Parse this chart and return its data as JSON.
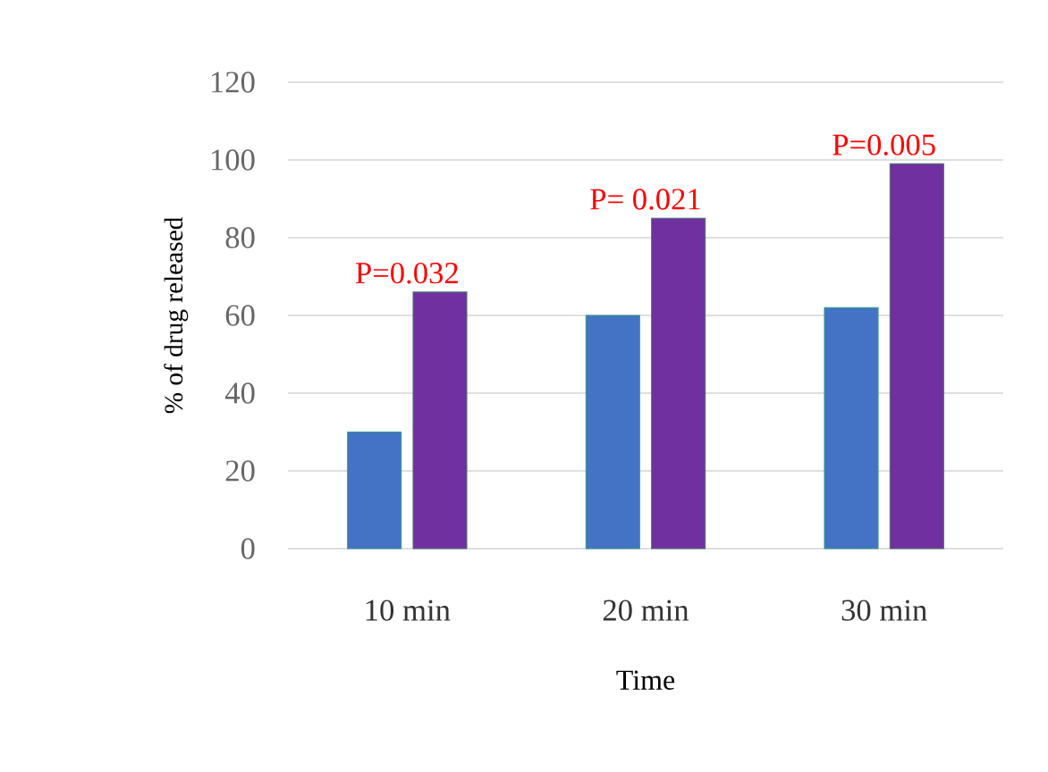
{
  "chart_data": {
    "type": "bar",
    "xlabel": "Time",
    "ylabel": "% of drug released",
    "categories": [
      "10 min",
      "20 min",
      "30 min"
    ],
    "series": [
      {
        "color": "#4472c4",
        "values": [
          30,
          60,
          62
        ]
      },
      {
        "color": "#7030a0",
        "values": [
          66,
          85,
          99
        ]
      }
    ],
    "ylim": [
      0,
      120
    ],
    "yticks": [
      0,
      20,
      40,
      60,
      80,
      100,
      120
    ],
    "grid": "y",
    "annotations": [
      {
        "text": "P=0.032",
        "x": "10 min",
        "y": 66
      },
      {
        "text": "P= 0.021",
        "x": "20 min",
        "y": 85
      },
      {
        "text": "P=0.005",
        "x": "30 min",
        "y": 99
      }
    ]
  }
}
